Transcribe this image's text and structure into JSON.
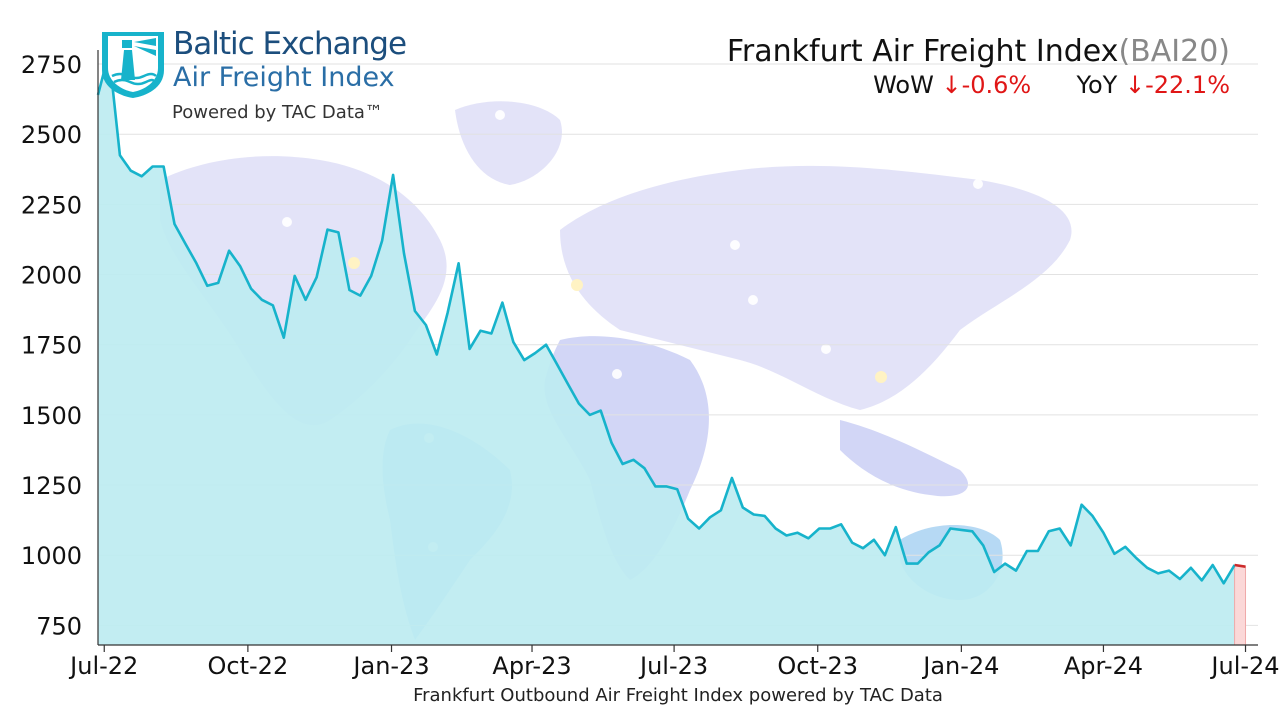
{
  "logo": {
    "line1": "Baltic Exchange",
    "line2": "Air Freight Index",
    "line3": "Powered by TAC Data™"
  },
  "header": {
    "title": "Frankfurt Air Freight Index",
    "code": "(BAI20)",
    "wow_label": "WoW",
    "wow_value": "-0.6%",
    "yoy_label": "YoY",
    "yoy_value": "-22.1%",
    "down_arrow": "↓"
  },
  "colors": {
    "line": "#17b3cb",
    "fill": "#bdecf1",
    "axis": "#333333",
    "grid": "#e2e2e2",
    "negative": "#e01616",
    "highlight_fill": "#fbd8d8"
  },
  "chart_data": {
    "type": "area",
    "title": "Frankfurt Air Freight Index(BAI20)",
    "xlabel": "Frankfurt Outbound Air Freight Index powered by TAC Data",
    "ylabel": "",
    "ylim": [
      680,
      2800
    ],
    "yticks": [
      750,
      1000,
      1250,
      1500,
      1750,
      2000,
      2250,
      2500,
      2750
    ],
    "xlim": [
      "2022-06-27",
      "2024-07-09"
    ],
    "xticks": [
      {
        "date": "2022-07-01",
        "label": "Jul-22"
      },
      {
        "date": "2022-10-01",
        "label": "Oct-22"
      },
      {
        "date": "2023-01-01",
        "label": "Jan-23"
      },
      {
        "date": "2023-04-01",
        "label": "Apr-23"
      },
      {
        "date": "2023-07-01",
        "label": "Jul-23"
      },
      {
        "date": "2023-10-01",
        "label": "Oct-23"
      },
      {
        "date": "2024-01-01",
        "label": "Jan-24"
      },
      {
        "date": "2024-04-01",
        "label": "Apr-24"
      },
      {
        "date": "2024-07-01",
        "label": "Jul-24"
      }
    ],
    "grid": true,
    "series": [
      {
        "name": "",
        "x": [
          "2022-06-27",
          "2022-07-04",
          "2022-07-11",
          "2022-07-18",
          "2022-07-25",
          "2022-08-01",
          "2022-08-08",
          "2022-08-15",
          "2022-08-22",
          "2022-08-29",
          "2022-09-05",
          "2022-09-12",
          "2022-09-19",
          "2022-09-26",
          "2022-10-03",
          "2022-10-10",
          "2022-10-17",
          "2022-10-24",
          "2022-10-31",
          "2022-11-07",
          "2022-11-14",
          "2022-11-21",
          "2022-11-28",
          "2022-12-05",
          "2022-12-12",
          "2022-12-19",
          "2022-12-26",
          "2023-01-02",
          "2023-01-09",
          "2023-01-16",
          "2023-01-23",
          "2023-01-30",
          "2023-02-06",
          "2023-02-13",
          "2023-02-20",
          "2023-02-27",
          "2023-03-06",
          "2023-03-13",
          "2023-03-20",
          "2023-03-27",
          "2023-04-03",
          "2023-04-10",
          "2023-04-17",
          "2023-04-24",
          "2023-05-01",
          "2023-05-08",
          "2023-05-15",
          "2023-05-22",
          "2023-05-29",
          "2023-06-05",
          "2023-06-12",
          "2023-06-19",
          "2023-06-26",
          "2023-07-03",
          "2023-07-10",
          "2023-07-17",
          "2023-07-24",
          "2023-07-31",
          "2023-08-07",
          "2023-08-14",
          "2023-08-21",
          "2023-08-28",
          "2023-09-04",
          "2023-09-11",
          "2023-09-18",
          "2023-09-25",
          "2023-10-02",
          "2023-10-09",
          "2023-10-16",
          "2023-10-23",
          "2023-10-30",
          "2023-11-06",
          "2023-11-13",
          "2023-11-20",
          "2023-11-27",
          "2023-12-04",
          "2023-12-11",
          "2023-12-18",
          "2023-12-25",
          "2024-01-01",
          "2024-01-08",
          "2024-01-15",
          "2024-01-22",
          "2024-01-29",
          "2024-02-05",
          "2024-02-12",
          "2024-02-19",
          "2024-02-26",
          "2024-03-04",
          "2024-03-11",
          "2024-03-18",
          "2024-03-25",
          "2024-04-01",
          "2024-04-08",
          "2024-04-15",
          "2024-04-22",
          "2024-04-29",
          "2024-05-06",
          "2024-05-13",
          "2024-05-20",
          "2024-05-27",
          "2024-06-03",
          "2024-06-10",
          "2024-06-17",
          "2024-06-24"
        ],
        "values": [
          2640,
          2790,
          2425,
          2370,
          2350,
          2385,
          2385,
          2180,
          2110,
          2040,
          1960,
          1970,
          2085,
          2030,
          1950,
          1910,
          1890,
          1775,
          1995,
          1910,
          1990,
          2160,
          2150,
          1945,
          1925,
          1995,
          2120,
          2355,
          2075,
          1870,
          1820,
          1715,
          1865,
          2040,
          1735,
          1800,
          1790,
          1900,
          1760,
          1695,
          1720,
          1750,
          1680,
          1610,
          1540,
          1500,
          1515,
          1400,
          1325,
          1340,
          1310,
          1245,
          1245,
          1235,
          1130,
          1095,
          1135,
          1160,
          1275,
          1170,
          1145,
          1140,
          1095,
          1070,
          1080,
          1060,
          1095,
          1095,
          1110,
          1045,
          1025,
          1055,
          1000,
          1100,
          970,
          970,
          1010,
          1035,
          1095,
          1090,
          1085,
          1035,
          940,
          970,
          945,
          1015,
          1015,
          1085,
          1095,
          1035,
          1180,
          1140,
          1080,
          1005,
          1030,
          990,
          955,
          935,
          945,
          915,
          955,
          910,
          965,
          900,
          965
        ]
      }
    ],
    "highlight": {
      "x": [
        "2024-06-24",
        "2024-07-01"
      ],
      "values": [
        965,
        959
      ]
    }
  }
}
